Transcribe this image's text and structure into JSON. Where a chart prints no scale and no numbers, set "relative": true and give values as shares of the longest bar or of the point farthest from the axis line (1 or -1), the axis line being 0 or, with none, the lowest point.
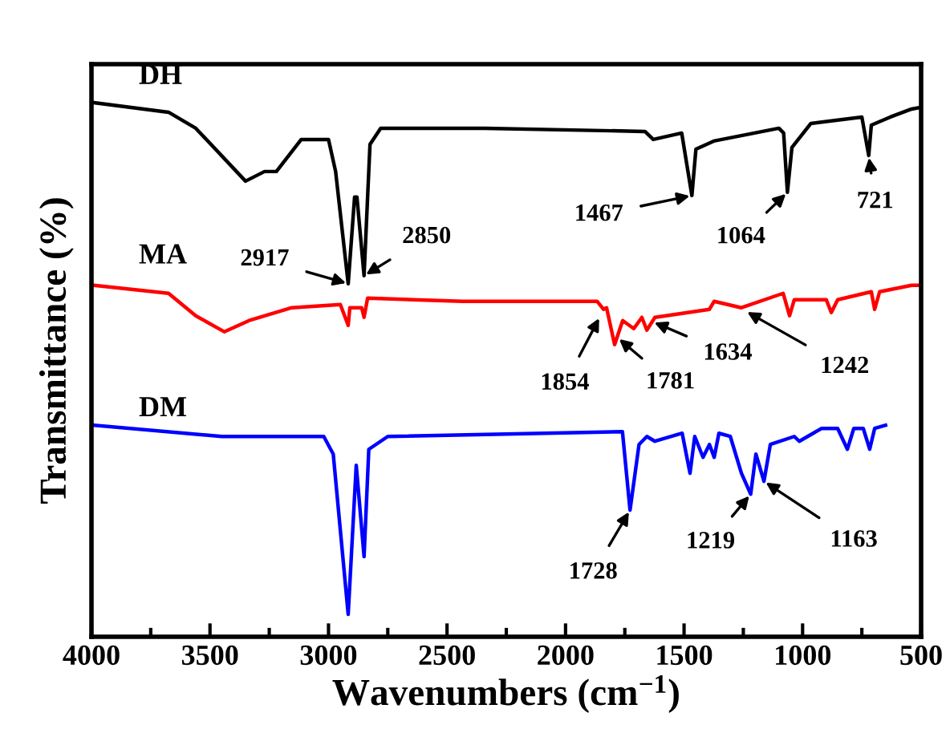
{
  "chart_data": {
    "type": "line",
    "relative": true,
    "xlabel": "Wavenumbers (cm$^{−1}$)",
    "ylabel": "Transmittance (%)",
    "xlim": [
      4000,
      500
    ],
    "xticks": [
      4000,
      3500,
      3000,
      2500,
      2000,
      1500,
      1000,
      500
    ],
    "grid": false,
    "legend": false,
    "marker": "none",
    "line_style": "solid",
    "series": [
      {
        "name": "DH",
        "color": "#000000",
        "x": [
          3990,
          3675,
          3560,
          3350,
          3270,
          3220,
          3115,
          3000,
          2970,
          2917,
          2890,
          2880,
          2850,
          2825,
          2780,
          2340,
          1665,
          1630,
          1510,
          1467,
          1450,
          1375,
          1100,
          1080,
          1064,
          1045,
          965,
          750,
          721,
          710,
          630,
          540,
          505
        ],
        "values": [
          1.0,
          0.982,
          0.952,
          0.853,
          0.871,
          0.871,
          0.931,
          0.931,
          0.871,
          0.661,
          0.823,
          0.823,
          0.676,
          0.922,
          0.952,
          0.952,
          0.946,
          0.931,
          0.943,
          0.826,
          0.913,
          0.928,
          0.952,
          0.943,
          0.832,
          0.916,
          0.961,
          0.973,
          0.901,
          0.958,
          0.973,
          0.988,
          0.991
        ]
      },
      {
        "name": "MA",
        "color": "#ff0000",
        "x": [
          3990,
          3675,
          3560,
          3440,
          3335,
          3155,
          2950,
          2917,
          2910,
          2860,
          2850,
          2835,
          2435,
          1867,
          1840,
          1827,
          1793,
          1759,
          1712,
          1678,
          1657,
          1623,
          1393,
          1373,
          1258,
          1082,
          1055,
          1035,
          900,
          879,
          852,
          710,
          696,
          675,
          540,
          505
        ],
        "values": [
          0.658,
          0.643,
          0.601,
          0.571,
          0.592,
          0.616,
          0.622,
          0.583,
          0.616,
          0.616,
          0.598,
          0.634,
          0.628,
          0.628,
          0.613,
          0.616,
          0.547,
          0.592,
          0.577,
          0.598,
          0.574,
          0.598,
          0.613,
          0.628,
          0.616,
          0.643,
          0.601,
          0.631,
          0.631,
          0.607,
          0.631,
          0.646,
          0.613,
          0.646,
          0.658,
          0.658
        ]
      },
      {
        "name": "DM",
        "color": "#0000ff",
        "x": [
          3990,
          3450,
          3020,
          2980,
          2917,
          2883,
          2850,
          2830,
          2750,
          1760,
          1728,
          1690,
          1657,
          1623,
          1508,
          1475,
          1455,
          1420,
          1393,
          1373,
          1353,
          1305,
          1258,
          1219,
          1197,
          1163,
          1136,
          1035,
          1014,
          920,
          852,
          811,
          784,
          744,
          717,
          696,
          650
        ],
        "values": [
          0.396,
          0.375,
          0.375,
          0.342,
          0.042,
          0.321,
          0.15,
          0.351,
          0.375,
          0.384,
          0.237,
          0.36,
          0.375,
          0.366,
          0.381,
          0.306,
          0.375,
          0.336,
          0.36,
          0.336,
          0.381,
          0.375,
          0.306,
          0.267,
          0.342,
          0.291,
          0.36,
          0.375,
          0.366,
          0.39,
          0.39,
          0.351,
          0.39,
          0.39,
          0.351,
          0.39,
          0.396
        ]
      }
    ],
    "annotations": [
      {
        "text": "2917",
        "x": 2917,
        "y": 0.661
      },
      {
        "text": "2850",
        "x": 2850,
        "y": 0.676
      },
      {
        "text": "1467",
        "x": 1467,
        "y": 0.826
      },
      {
        "text": "1064",
        "x": 1064,
        "y": 0.832
      },
      {
        "text": "721",
        "x": 721,
        "y": 0.901
      },
      {
        "text": "1854",
        "x": 1854,
        "y": 0.6
      },
      {
        "text": "1781",
        "x": 1781,
        "y": 0.56
      },
      {
        "text": "1634",
        "x": 1634,
        "y": 0.59
      },
      {
        "text": "1242",
        "x": 1242,
        "y": 0.61
      },
      {
        "text": "1728",
        "x": 1728,
        "y": 0.237
      },
      {
        "text": "1219",
        "x": 1219,
        "y": 0.267
      },
      {
        "text": "1163",
        "x": 1163,
        "y": 0.291
      }
    ]
  }
}
